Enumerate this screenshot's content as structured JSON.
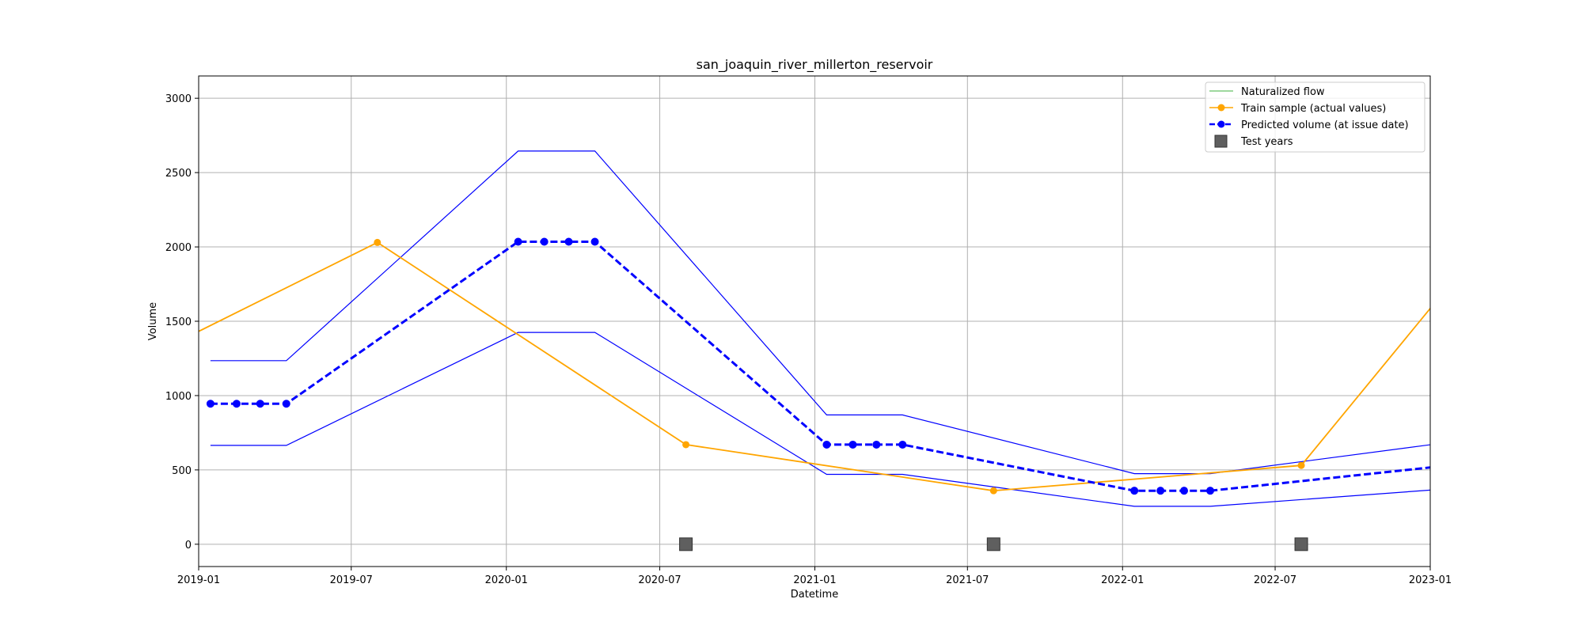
{
  "chart_data": {
    "type": "line",
    "title": "san_joaquin_river_millerton_reservoir",
    "xlabel": "Datetime",
    "ylabel": "Volume",
    "xlim": [
      "2019-01-01",
      "2023-01-01"
    ],
    "ylim": [
      -150,
      3150
    ],
    "grid": true,
    "legend_position": "top-right",
    "x_ticks": [
      "2019-01",
      "2019-07",
      "2020-01",
      "2020-07",
      "2021-01",
      "2021-07",
      "2022-01",
      "2022-07",
      "2023-01"
    ],
    "y_ticks": [
      0,
      500,
      1000,
      1500,
      2000,
      2500,
      3000
    ],
    "legend": {
      "naturalized": "Naturalized flow",
      "train": "Train sample (actual values)",
      "predicted": "Predicted volume (at issue date)",
      "test": "Test years"
    },
    "colors": {
      "naturalized": "#7fcc7f",
      "train": "#ffa500",
      "predicted": "#0000ff",
      "test_fill": "#5f5f5f",
      "grid": "#b0b0b0"
    },
    "series": [
      {
        "key": "train",
        "style": "line-markers",
        "points": [
          {
            "x": "2018-08-01",
            "y": 1000
          },
          {
            "x": "2019-08-01",
            "y": 2030
          },
          {
            "x": "2020-08-01",
            "y": 670
          },
          {
            "x": "2021-08-01",
            "y": 360
          },
          {
            "x": "2022-08-01",
            "y": 530
          },
          {
            "x": "2023-08-01",
            "y": 3050
          }
        ],
        "markers": [
          {
            "x": "2019-08-01",
            "y": 2030
          },
          {
            "x": "2020-08-01",
            "y": 670
          },
          {
            "x": "2021-08-01",
            "y": 360
          },
          {
            "x": "2022-08-01",
            "y": 530
          }
        ]
      },
      {
        "key": "predicted",
        "style": "dashed-markers",
        "points": [
          {
            "x": "2019-01-15",
            "y": 945
          },
          {
            "x": "2019-02-15",
            "y": 945
          },
          {
            "x": "2019-03-15",
            "y": 945
          },
          {
            "x": "2019-04-15",
            "y": 945
          },
          {
            "x": "2020-01-15",
            "y": 2035
          },
          {
            "x": "2020-02-15",
            "y": 2035
          },
          {
            "x": "2020-03-15",
            "y": 2035
          },
          {
            "x": "2020-04-15",
            "y": 2035
          },
          {
            "x": "2021-01-15",
            "y": 670
          },
          {
            "x": "2021-02-15",
            "y": 670
          },
          {
            "x": "2021-03-15",
            "y": 670
          },
          {
            "x": "2021-04-15",
            "y": 670
          },
          {
            "x": "2022-01-15",
            "y": 360
          },
          {
            "x": "2022-02-15",
            "y": 360
          },
          {
            "x": "2022-03-15",
            "y": 360
          },
          {
            "x": "2022-04-15",
            "y": 360
          },
          {
            "x": "2023-01-15",
            "y": 525
          }
        ]
      },
      {
        "key": "upper_bound",
        "style": "thin-line",
        "points": [
          {
            "x": "2019-01-15",
            "y": 1235
          },
          {
            "x": "2019-04-15",
            "y": 1235
          },
          {
            "x": "2020-01-15",
            "y": 2645
          },
          {
            "x": "2020-04-15",
            "y": 2645
          },
          {
            "x": "2021-01-15",
            "y": 870
          },
          {
            "x": "2021-04-15",
            "y": 870
          },
          {
            "x": "2022-01-15",
            "y": 475
          },
          {
            "x": "2022-04-15",
            "y": 475
          },
          {
            "x": "2023-01-15",
            "y": 680
          }
        ]
      },
      {
        "key": "lower_bound",
        "style": "thin-line",
        "points": [
          {
            "x": "2019-01-15",
            "y": 665
          },
          {
            "x": "2019-04-15",
            "y": 665
          },
          {
            "x": "2020-01-15",
            "y": 1425
          },
          {
            "x": "2020-04-15",
            "y": 1425
          },
          {
            "x": "2021-01-15",
            "y": 470
          },
          {
            "x": "2021-04-15",
            "y": 470
          },
          {
            "x": "2022-01-15",
            "y": 255
          },
          {
            "x": "2022-04-15",
            "y": 255
          },
          {
            "x": "2023-01-15",
            "y": 370
          }
        ]
      },
      {
        "key": "test",
        "style": "square-markers",
        "points": [
          {
            "x": "2020-08-01",
            "y": 0
          },
          {
            "x": "2021-08-01",
            "y": 0
          },
          {
            "x": "2022-08-01",
            "y": 0
          }
        ]
      }
    ]
  }
}
